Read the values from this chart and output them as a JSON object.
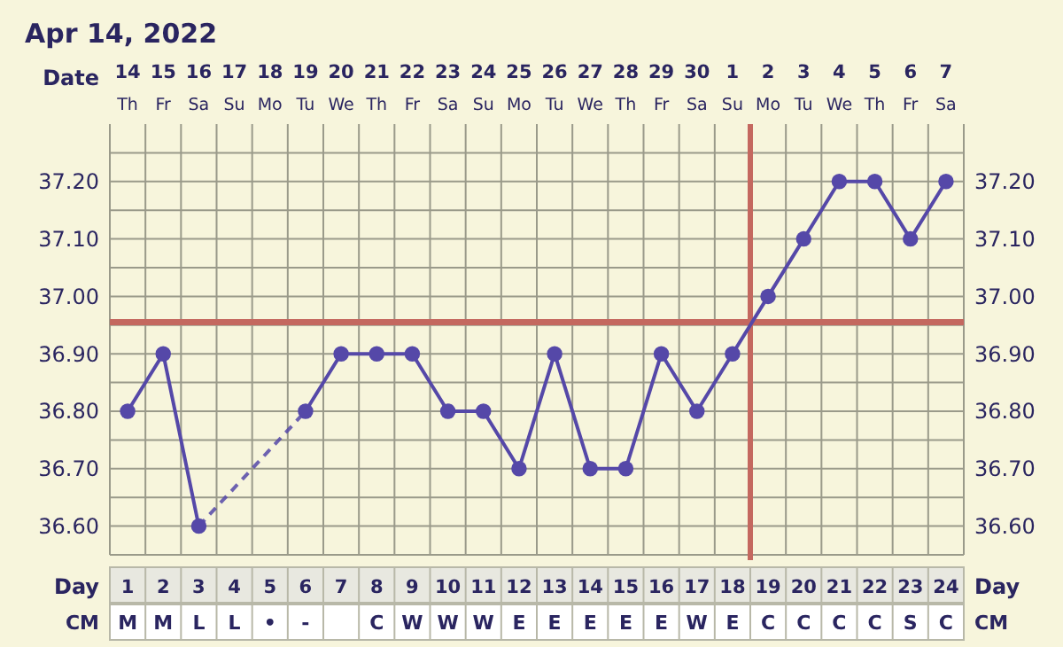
{
  "chart_data": {
    "type": "line",
    "title": "Apr 14, 2022",
    "xlabel": "Day",
    "x2label": "Date",
    "series": [
      {
        "color": "#5548a8",
        "x": [
          1,
          2,
          3,
          4,
          5,
          6,
          7,
          8,
          9,
          10,
          11,
          12,
          13,
          14,
          15,
          16,
          17,
          18,
          19,
          20,
          21,
          22,
          23,
          24
        ],
        "values": [
          36.8,
          36.9,
          36.6,
          null,
          null,
          36.8,
          36.9,
          36.9,
          36.9,
          36.8,
          36.8,
          36.7,
          36.9,
          36.7,
          36.7,
          36.9,
          36.8,
          36.9,
          37.0,
          37.1,
          37.2,
          37.2,
          37.1,
          37.2
        ]
      }
    ],
    "xlim": [
      0.5,
      24.5
    ],
    "xticks": [
      1,
      2,
      3,
      4,
      5,
      6,
      7,
      8,
      9,
      10,
      11,
      12,
      13,
      14,
      15,
      16,
      17,
      18,
      19,
      20,
      21,
      22,
      23,
      24
    ],
    "x2lim": [
      "2022-04-13T12:00",
      "2022-05-07T12:00"
    ],
    "x2ticks": [
      {
        "value": "2022-04-14",
        "label": "14"
      },
      {
        "value": "2022-04-15",
        "label": "15"
      },
      {
        "value": "2022-04-16",
        "label": "16"
      },
      {
        "value": "2022-04-17",
        "label": "17"
      },
      {
        "value": "2022-04-18",
        "label": "18"
      },
      {
        "value": "2022-04-19",
        "label": "19"
      },
      {
        "value": "2022-04-20",
        "label": "20"
      },
      {
        "value": "2022-04-21",
        "label": "21"
      },
      {
        "value": "2022-04-22",
        "label": "22"
      },
      {
        "value": "2022-04-23",
        "label": "23"
      },
      {
        "value": "2022-04-24",
        "label": "24"
      },
      {
        "value": "2022-04-25",
        "label": "25"
      },
      {
        "value": "2022-04-26",
        "label": "26"
      },
      {
        "value": "2022-04-27",
        "label": "27"
      },
      {
        "value": "2022-04-28",
        "label": "28"
      },
      {
        "value": "2022-04-29",
        "label": "29"
      },
      {
        "value": "2022-04-30",
        "label": "30"
      },
      {
        "value": "2022-05-01",
        "label": "1"
      },
      {
        "value": "2022-05-02",
        "label": "2"
      },
      {
        "value": "2022-05-03",
        "label": "3"
      },
      {
        "value": "2022-05-04",
        "label": "4"
      },
      {
        "value": "2022-05-05",
        "label": "5"
      },
      {
        "value": "2022-05-06",
        "label": "6"
      },
      {
        "value": "2022-05-07",
        "label": "7"
      }
    ],
    "ylim": [
      36.55,
      37.3
    ],
    "yticks": [
      {
        "value": 36.55,
        "label": null
      },
      {
        "value": 36.6,
        "label": "36.60"
      },
      {
        "value": 36.65,
        "label": null
      },
      {
        "value": 36.7,
        "label": "36.70"
      },
      {
        "value": 36.75,
        "label": null
      },
      {
        "value": 36.8,
        "label": "36.80"
      },
      {
        "value": 36.85,
        "label": null
      },
      {
        "value": 36.9,
        "label": "36.90"
      },
      {
        "value": 36.95,
        "label": null
      },
      {
        "value": 37.0,
        "label": "37.00"
      },
      {
        "value": 37.05,
        "label": null
      },
      {
        "value": 37.1,
        "label": "37.10"
      },
      {
        "value": 37.15,
        "label": null
      },
      {
        "value": 37.2,
        "label": "37.20"
      },
      {
        "value": 37.25,
        "label": null
      }
    ],
    "y2lim": [
      36.55,
      37.3
    ],
    "y2ticks": [
      {
        "value": 36.6,
        "label": "36.60"
      },
      {
        "value": 36.7,
        "label": "36.70"
      },
      {
        "value": 36.8,
        "label": "36.80"
      },
      {
        "value": 36.9,
        "label": "36.90"
      },
      {
        "value": 37.0,
        "label": "37.00"
      },
      {
        "value": 37.1,
        "label": "37.10"
      },
      {
        "value": 37.2,
        "label": "37.20"
      }
    ],
    "grid": true,
    "marker": "circle",
    "line_style": "solid",
    "ref_lines": [
      {
        "axis": "y",
        "value": 36.955,
        "color": "#c4685f"
      },
      {
        "axis": "x",
        "value": 18.5,
        "color": "#c4685f"
      }
    ],
    "annotations": [
      "Th",
      "Fr",
      "Sa",
      "Su",
      "Mo",
      "Tu",
      "We",
      "Th",
      "Fr",
      "Sa",
      "Su",
      "Mo",
      "Tu",
      "We",
      "Th",
      "Fr",
      "Sa",
      "Su",
      "Mo",
      "Tu",
      "We",
      "Th",
      "Fr",
      "Sa",
      "M",
      "M",
      "L",
      "L",
      "•",
      "-",
      null,
      "C",
      "W",
      "W",
      "W",
      "E",
      "E",
      "E",
      "E",
      "E",
      "W",
      "E",
      "C",
      "C",
      "C",
      "C",
      "S",
      "C",
      "CM"
    ]
  }
}
